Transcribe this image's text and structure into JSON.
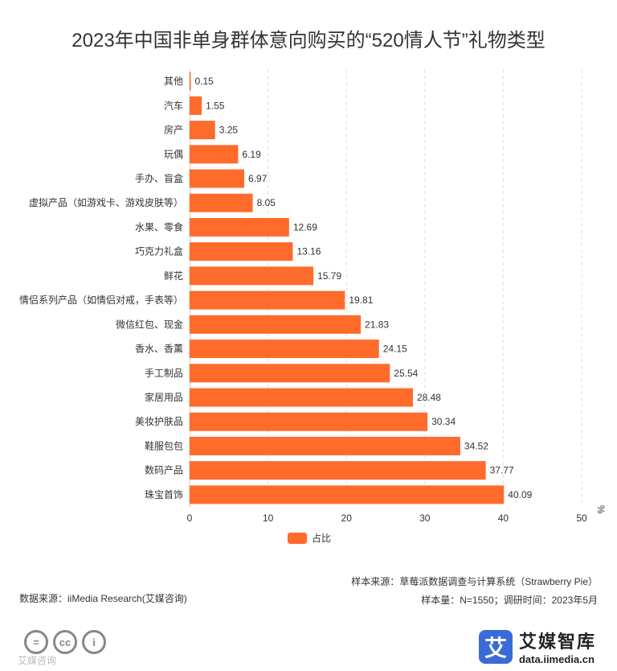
{
  "colors": {
    "bar": "#FF6B2B",
    "grid": "#dddddd",
    "axis": "#cccccc",
    "text": "#333333"
  },
  "chart_data": {
    "type": "bar",
    "orientation": "horizontal",
    "title": "2023年中国非单身群体意向购买的“520情人节”礼物类型",
    "unit": "%",
    "xlim": [
      0,
      50
    ],
    "xticks": [
      0,
      10,
      20,
      30,
      40,
      50
    ],
    "legend": {
      "label": "占比",
      "position": "bottom-center"
    },
    "categories": [
      "其他",
      "汽车",
      "房产",
      "玩偶",
      "手办、盲盒",
      "虚拟产品（如游戏卡、游戏皮肤等）",
      "水果、零食",
      "巧克力礼盒",
      "鲜花",
      "情侣系列产品（如情侣对戒，手表等）",
      "微信红包、现金",
      "香水、香薰",
      "手工制品",
      "家居用品",
      "美妆护肤品",
      "鞋服包包",
      "数码产品",
      "珠宝首饰"
    ],
    "values": [
      0.15,
      1.55,
      3.25,
      6.19,
      6.97,
      8.05,
      12.69,
      13.16,
      15.79,
      19.81,
      21.83,
      24.15,
      25.54,
      28.48,
      30.34,
      34.52,
      37.77,
      40.09
    ],
    "value_labels": [
      "0.15",
      "1.55",
      "3.25",
      "6.19",
      "6.97",
      "8.05",
      "12.69",
      "13.16",
      "15.79",
      "19.81",
      "21.83",
      "24.15",
      "25.54",
      "28.48",
      "30.34",
      "34.52",
      "37.77",
      "40.09"
    ]
  },
  "footer": {
    "data_source": "数据来源：iiMedia Research(艾媒咨询)",
    "sample_source": "样本来源：草莓派数据调查与计算系统（Strawberry Pie）",
    "sample_size": "样本量：N=1550；调研时间：2023年5月"
  },
  "brand": {
    "logo_char": "艾",
    "name": "艾媒智库",
    "url": "data.iimedia.cn"
  },
  "license": {
    "icons": [
      "=",
      "cc",
      "i"
    ],
    "watermark": "艾媒咨询"
  }
}
